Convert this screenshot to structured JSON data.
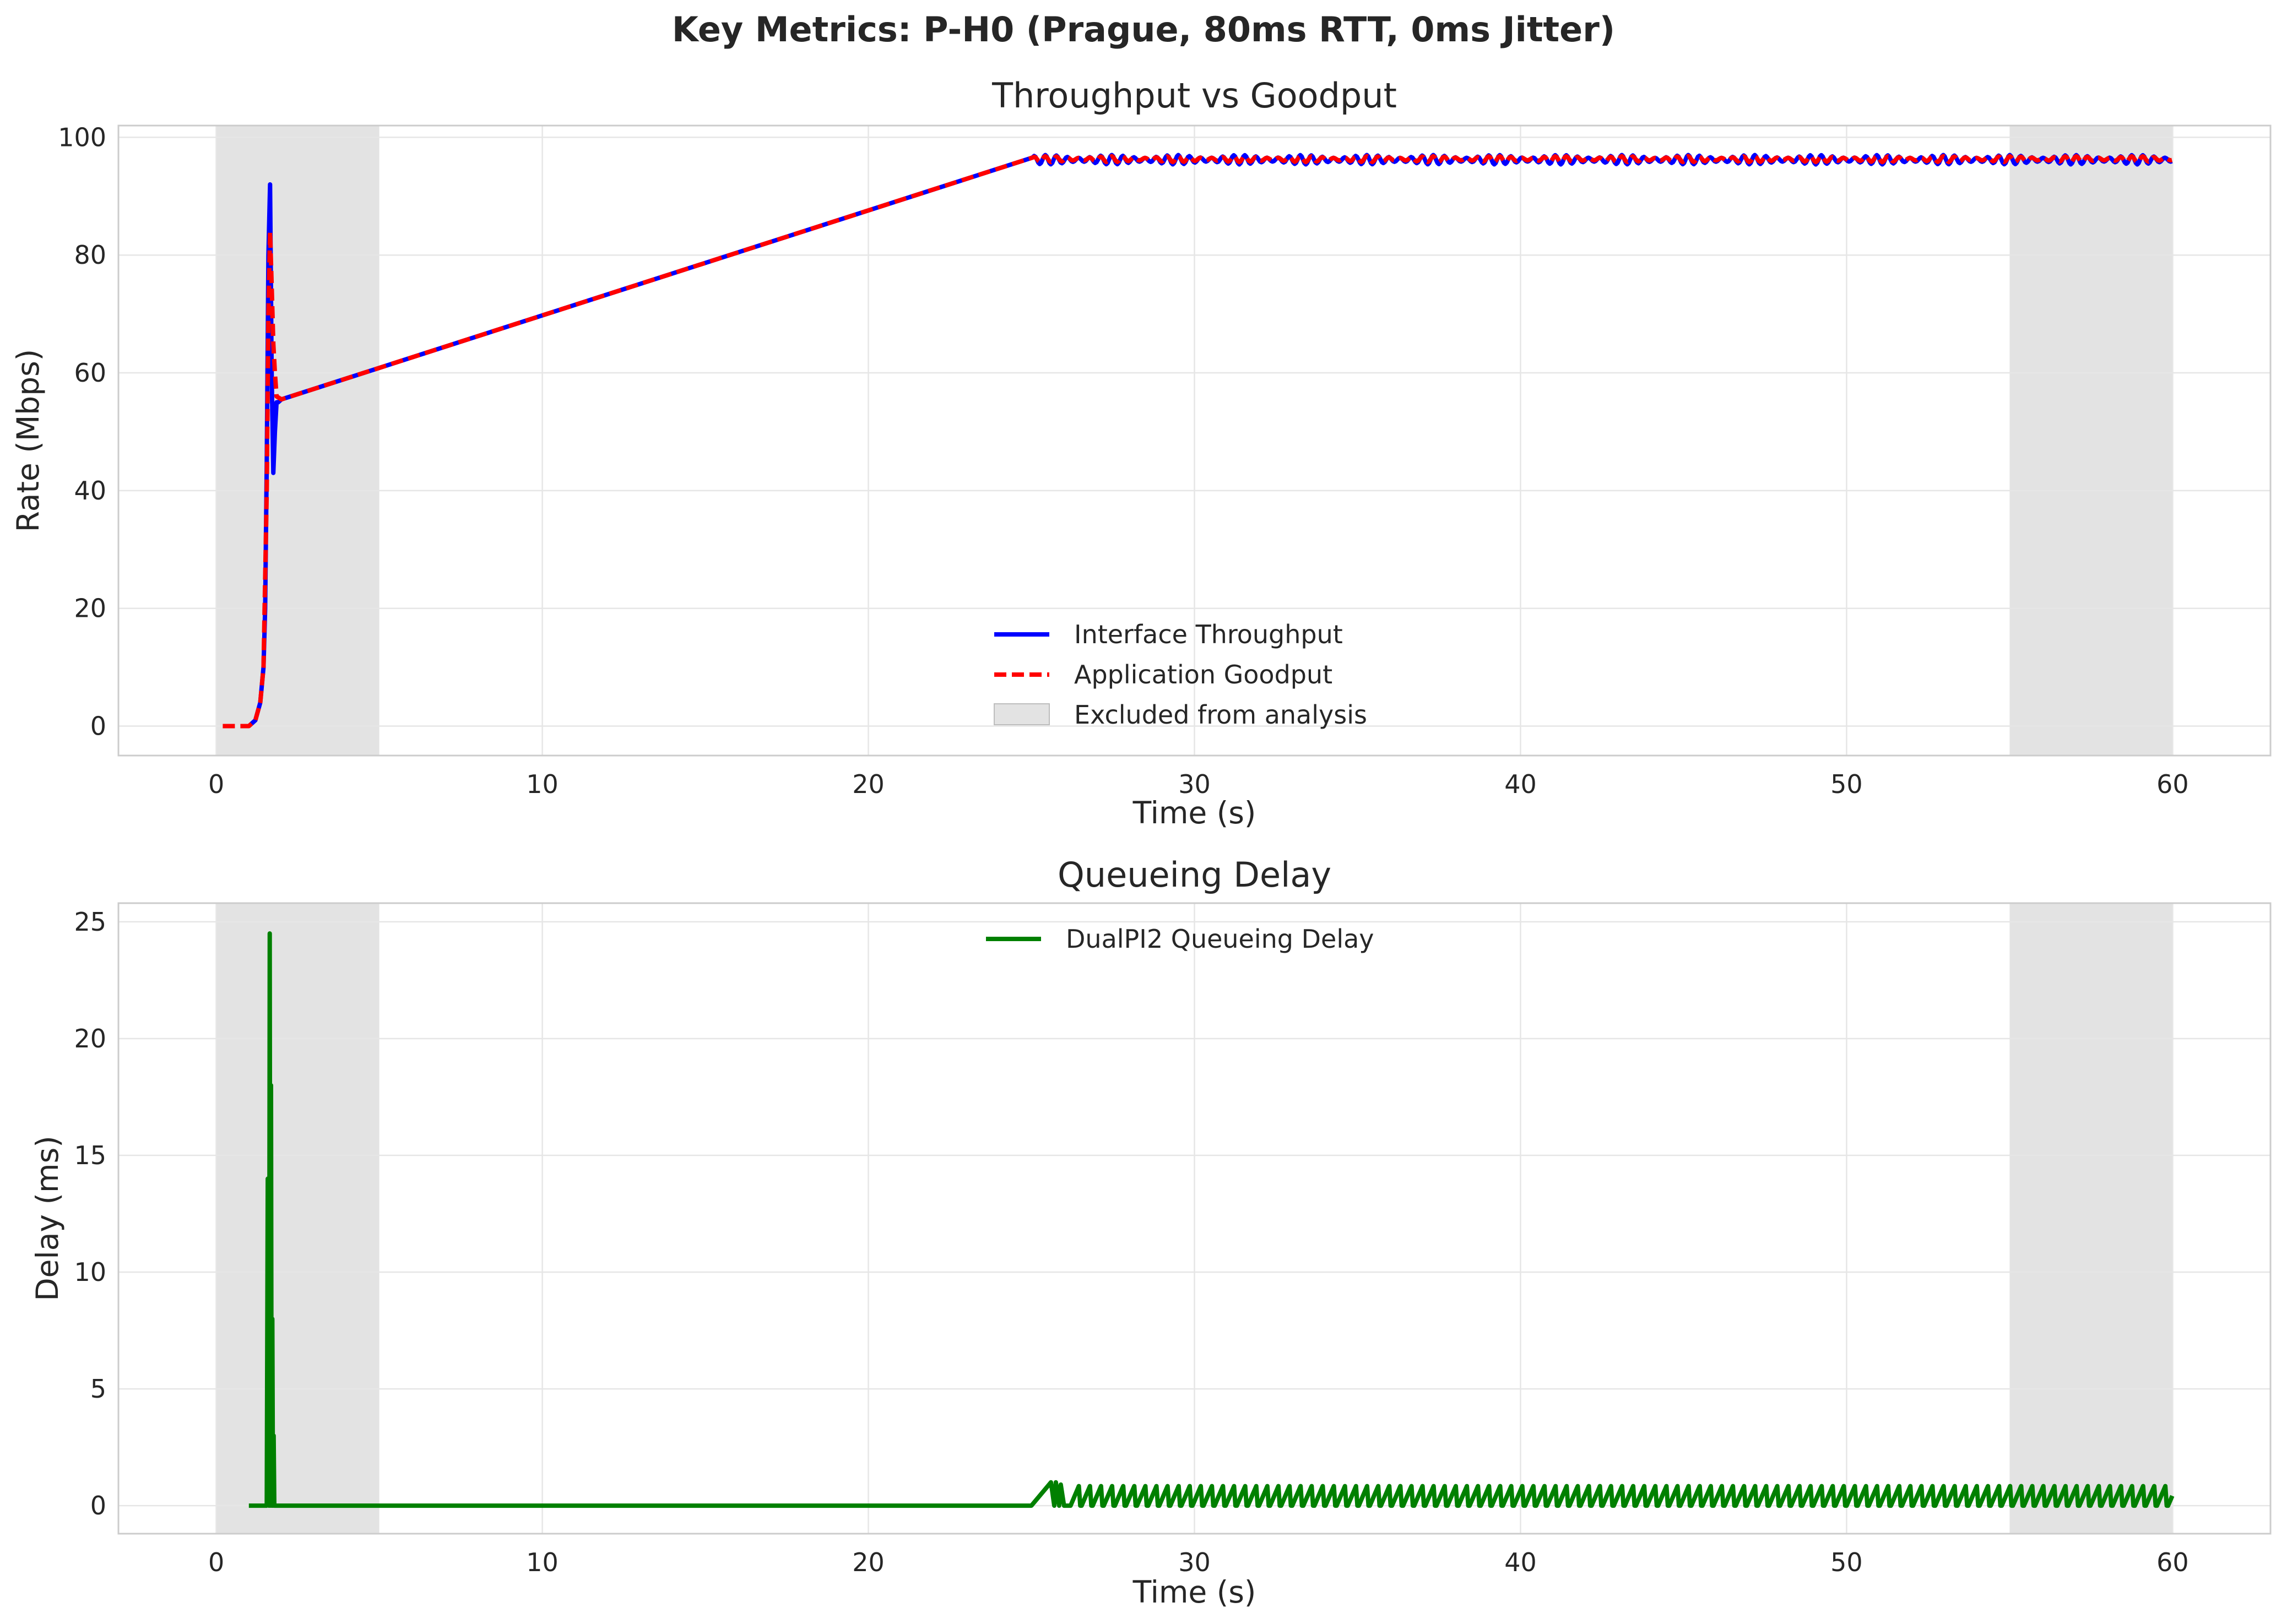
{
  "suptitle": "Key Metrics: P-H0 (Prague, 80ms RTT, 0ms Jitter)",
  "colors": {
    "throughput": "#0000ff",
    "goodput": "#ff0000",
    "delay": "#008000",
    "excluded": "#cccccc"
  },
  "chart_data": [
    {
      "type": "line",
      "title": "Throughput vs Goodput",
      "xlabel": "Time (s)",
      "ylabel": "Rate (Mbps)",
      "xlim": [
        -3,
        63
      ],
      "ylim": [
        -5,
        102
      ],
      "xticks": [
        0,
        10,
        20,
        30,
        40,
        50,
        60
      ],
      "xtick_labels": [
        "0",
        "10",
        "20",
        "30",
        "40",
        "50",
        "60"
      ],
      "yticks": [
        0,
        20,
        40,
        60,
        80,
        100
      ],
      "ytick_labels": [
        "0",
        "20",
        "40",
        "60",
        "80",
        "100"
      ],
      "grid": true,
      "legend_position": "lower-center",
      "excluded_regions": [
        [
          0,
          5
        ],
        [
          55,
          60
        ]
      ],
      "series": [
        {
          "name": "Interface Throughput",
          "style": "solid",
          "x": [
            1.0,
            1.2,
            1.35,
            1.45,
            1.5,
            1.55,
            1.6,
            1.65,
            1.7,
            1.75,
            1.8,
            1.85,
            1.9,
            2.0,
            25.0
          ],
          "y": [
            0,
            1,
            4,
            10,
            20,
            45,
            80,
            92,
            60,
            43,
            50,
            55,
            55,
            55.5,
            96.5
          ],
          "oscillation": {
            "x_start": 25.0,
            "x_end": 60.0,
            "center": 96.2,
            "amplitude": 0.8,
            "period": 0.34
          }
        },
        {
          "name": "Application Goodput",
          "style": "dashed",
          "x": [
            0.2,
            1.0,
            1.2,
            1.35,
            1.45,
            1.55,
            1.6,
            1.65,
            1.7,
            1.75,
            1.8,
            1.85,
            2.0,
            25.0
          ],
          "y": [
            0,
            0,
            1,
            4,
            10,
            40,
            70,
            84,
            75,
            65,
            60,
            56,
            55.5,
            96.5
          ],
          "oscillation": {
            "x_start": 25.0,
            "x_end": 60.0,
            "center": 96.3,
            "amplitude": 0.5,
            "period": 0.34
          }
        },
        {
          "name": "Excluded from analysis",
          "style": "patch"
        }
      ]
    },
    {
      "type": "line",
      "title": "Queueing Delay",
      "xlabel": "Time (s)",
      "ylabel": "Delay (ms)",
      "xlim": [
        -3,
        63
      ],
      "ylim": [
        -1.2,
        25.8
      ],
      "xticks": [
        0,
        10,
        20,
        30,
        40,
        50,
        60
      ],
      "xtick_labels": [
        "0",
        "10",
        "20",
        "30",
        "40",
        "50",
        "60"
      ],
      "yticks": [
        0,
        5,
        10,
        15,
        20,
        25
      ],
      "ytick_labels": [
        "0",
        "5",
        "10",
        "15",
        "20",
        "25"
      ],
      "grid": true,
      "legend_position": "upper-center",
      "excluded_regions": [
        [
          0,
          5
        ],
        [
          55,
          60
        ]
      ],
      "series": [
        {
          "name": "DualPI2 Queueing Delay",
          "style": "solid",
          "x": [
            1.0,
            1.55,
            1.58,
            1.62,
            1.64,
            1.66,
            1.68,
            1.7,
            1.72,
            1.74,
            1.76,
            1.78,
            1.8,
            25.0,
            25.6,
            25.7,
            25.75,
            25.85,
            25.9,
            26.0,
            26.1,
            26.2
          ],
          "y": [
            0,
            0,
            14,
            0,
            24.5,
            0,
            18,
            0,
            8,
            0,
            3,
            0,
            0,
            0,
            1.0,
            0,
            1.0,
            0,
            0.9,
            0,
            0,
            0
          ],
          "oscillation": {
            "x_start": 26.2,
            "x_end": 60.0,
            "min": 0.0,
            "max": 0.95,
            "period": 0.34
          }
        }
      ]
    }
  ]
}
